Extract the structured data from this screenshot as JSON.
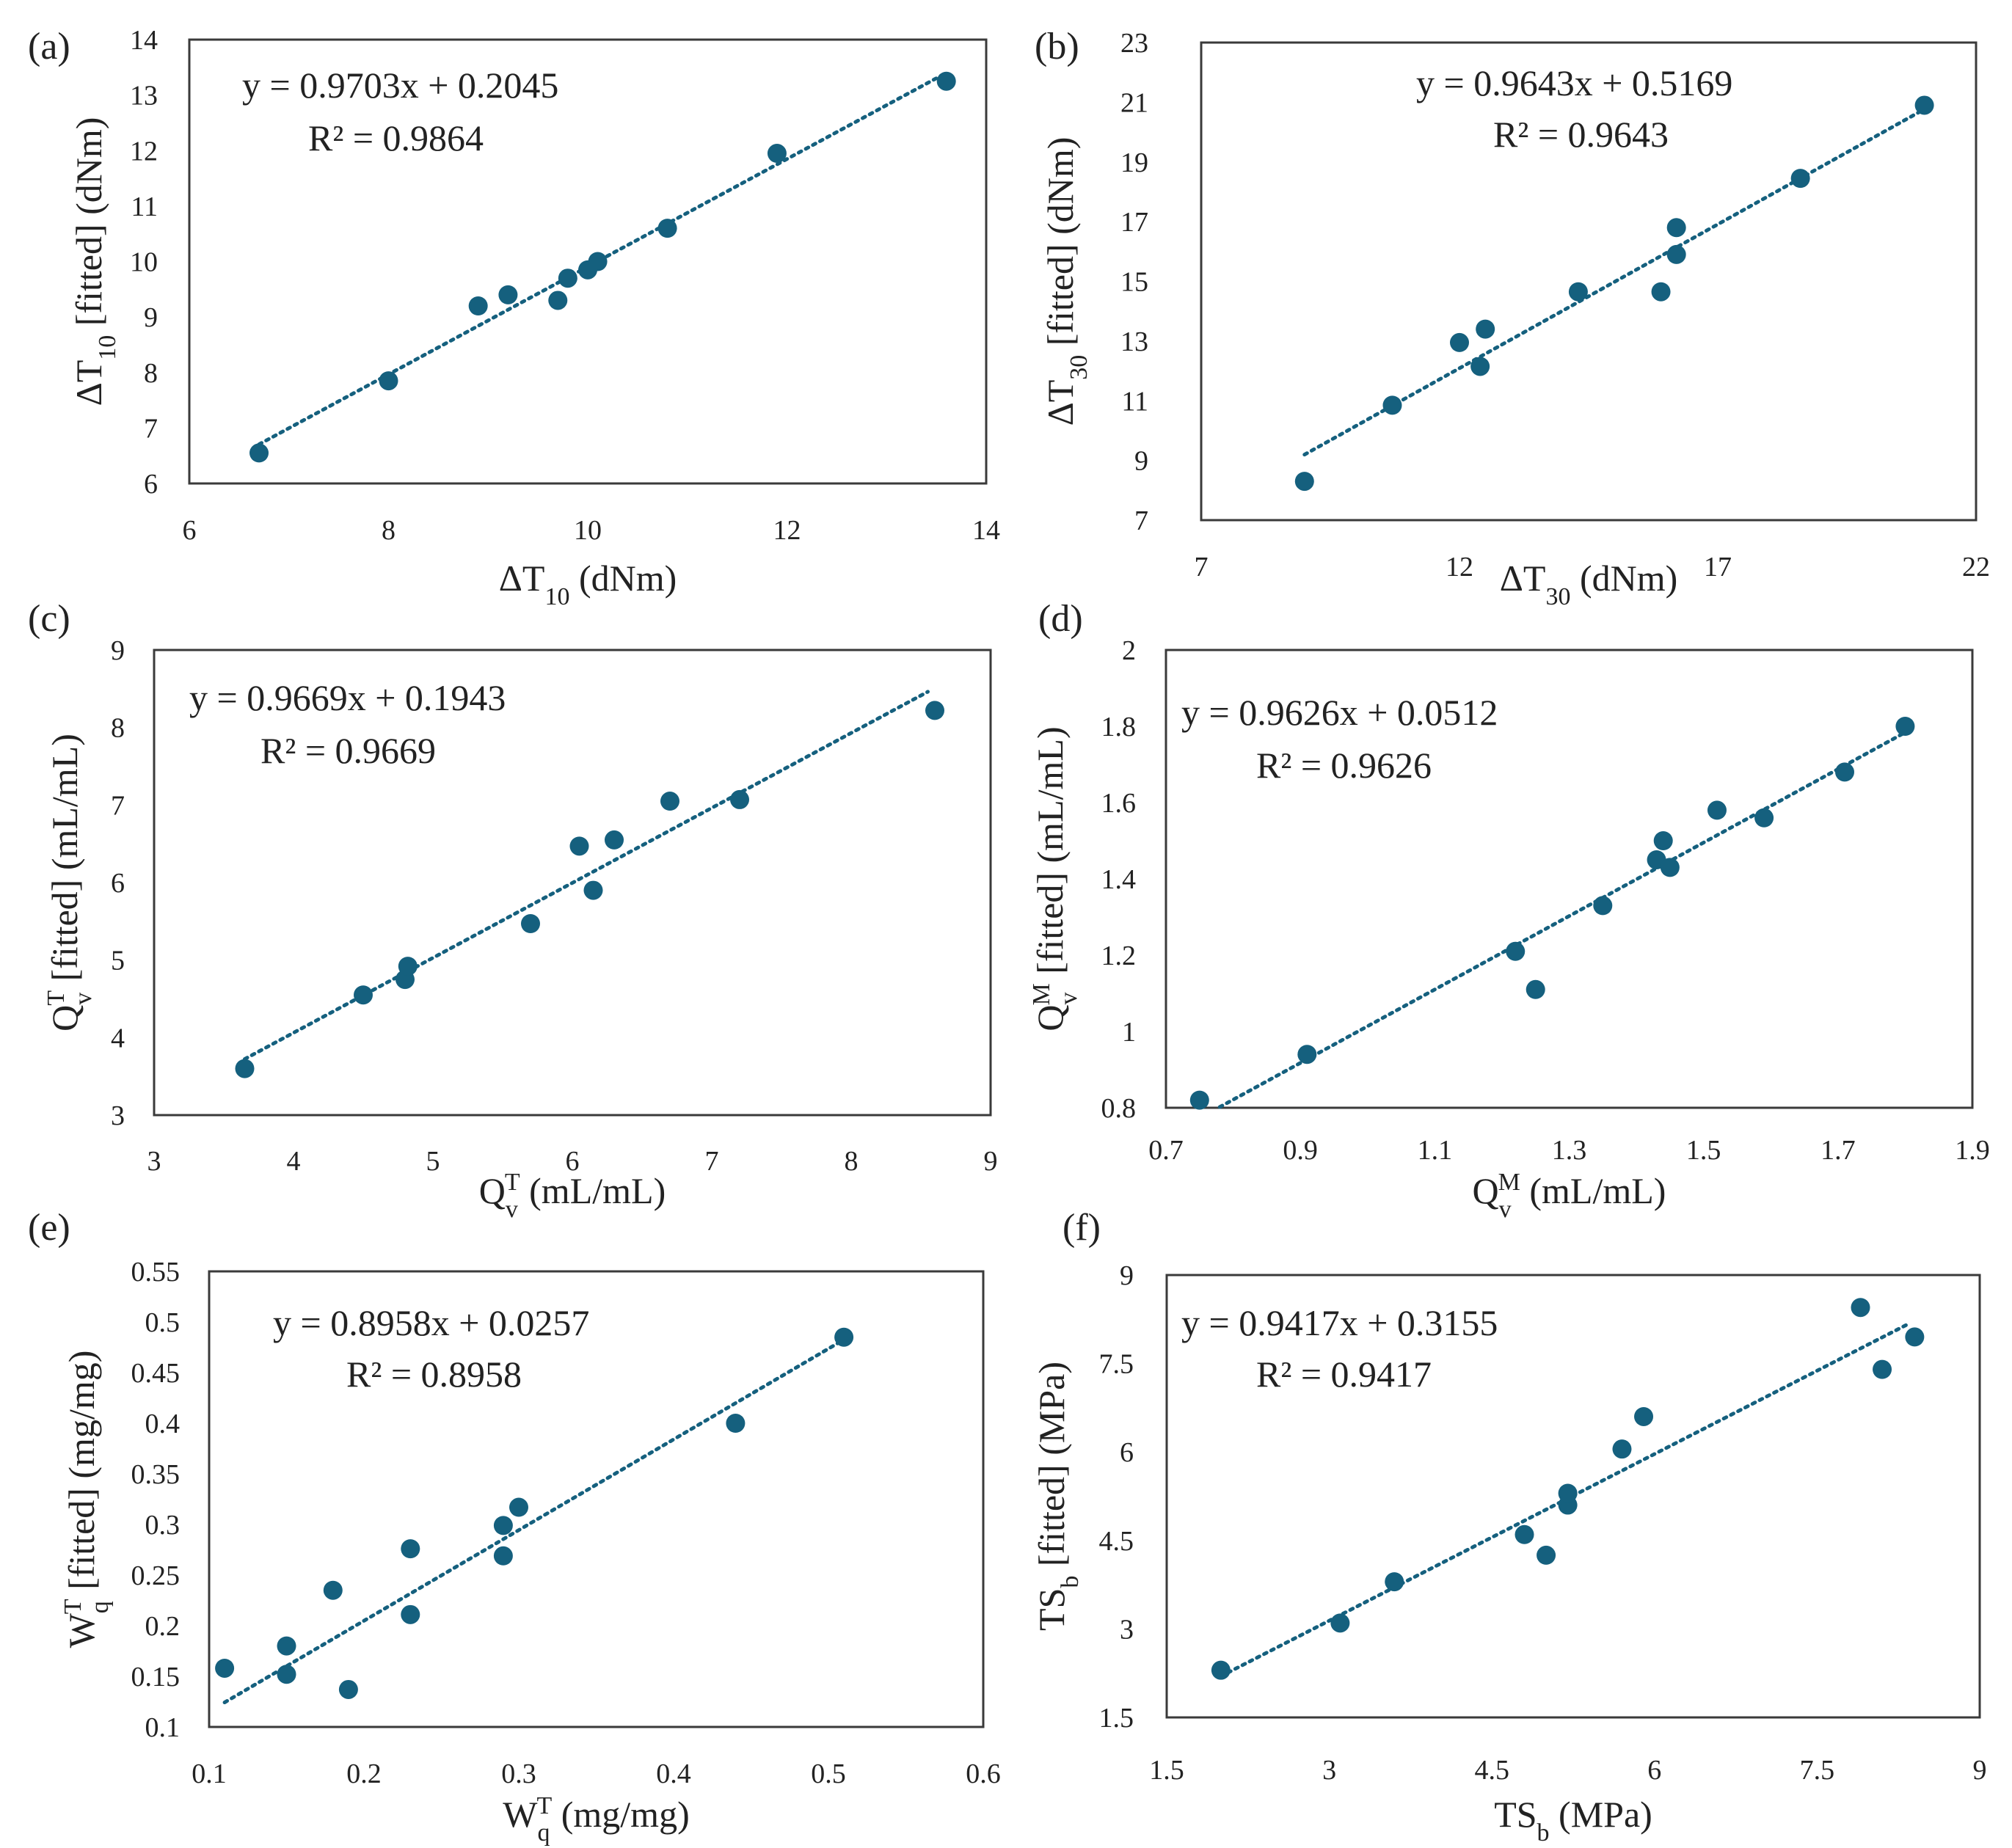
{
  "colors": {
    "marker": "#15607E",
    "trendline": "#15607E",
    "frame": "#3a3a3a",
    "text": "#222222"
  },
  "chart_data": [
    {
      "id": "a",
      "type": "scatter",
      "panel_label": "(a)",
      "xlabel": {
        "pre": "ΔT",
        "sub": "10",
        "post": " (dNm)"
      },
      "ylabel": {
        "pre": "ΔT",
        "sub": "10",
        "post": " [fitted] (dNm)"
      },
      "xlim": [
        6,
        14
      ],
      "ylim": [
        6,
        14
      ],
      "xticks": [
        6,
        8,
        10,
        12,
        14
      ],
      "yticks": [
        6,
        7,
        8,
        9,
        10,
        11,
        12,
        13,
        14
      ],
      "equation": "y = 0.9703x + 0.2045",
      "r2": "R² = 0.9864",
      "x": [
        6.7,
        8.0,
        8.9,
        9.2,
        9.7,
        9.8,
        10.0,
        10.1,
        10.8,
        11.9,
        13.6
      ],
      "y": [
        6.55,
        7.85,
        9.2,
        9.4,
        9.3,
        9.7,
        9.85,
        10.0,
        10.6,
        11.95,
        13.25
      ],
      "trend": {
        "slope": 0.9703,
        "intercept": 0.2045,
        "x_range": [
          6.7,
          13.6
        ]
      }
    },
    {
      "id": "b",
      "type": "scatter",
      "panel_label": "(b)",
      "xlabel": {
        "pre": "ΔT",
        "sub": "30",
        "post": " (dNm)"
      },
      "ylabel": {
        "pre": "ΔT",
        "sub": "30",
        "post": " [fitted] (dNm)"
      },
      "xlim": [
        7,
        22
      ],
      "ylim": [
        7,
        23
      ],
      "xticks": [
        7,
        12,
        17,
        22
      ],
      "yticks": [
        7,
        9,
        11,
        13,
        15,
        17,
        19,
        21,
        23
      ],
      "equation": "y = 0.9643x + 0.5169",
      "r2": "R² = 0.9643",
      "x": [
        9.0,
        10.7,
        12.0,
        12.4,
        12.5,
        14.3,
        15.9,
        16.2,
        16.2,
        18.6,
        21.0
      ],
      "y": [
        8.3,
        10.85,
        12.95,
        12.15,
        13.4,
        14.65,
        14.65,
        15.9,
        16.8,
        18.45,
        20.9
      ],
      "trend": {
        "slope": 0.9643,
        "intercept": 0.5169,
        "x_range": [
          9.0,
          21.0
        ]
      }
    },
    {
      "id": "c",
      "type": "scatter",
      "panel_label": "(c)",
      "xlabel": {
        "pre": "Q",
        "sub": "v",
        "sup": "T",
        "post": " (mL/mL)"
      },
      "ylabel": {
        "pre": "Q",
        "sub": "v",
        "sup": "T",
        "post": " [fitted] (mL/mL)"
      },
      "xlim": [
        3,
        9
      ],
      "ylim": [
        3,
        9
      ],
      "xticks": [
        3,
        4,
        5,
        6,
        7,
        8,
        9
      ],
      "yticks": [
        3,
        4,
        5,
        6,
        7,
        8,
        9
      ],
      "equation": "y = 0.9669x + 0.1943",
      "r2": "R² = 0.9669",
      "x": [
        3.65,
        4.5,
        4.8,
        4.82,
        5.7,
        6.05,
        6.15,
        6.3,
        6.7,
        7.2,
        8.6
      ],
      "y": [
        3.6,
        4.55,
        4.75,
        4.92,
        5.47,
        6.47,
        5.9,
        6.55,
        7.05,
        7.07,
        8.22
      ],
      "trend": {
        "slope": 0.9669,
        "intercept": 0.1943,
        "x_range": [
          3.65,
          8.55
        ]
      }
    },
    {
      "id": "d",
      "type": "scatter",
      "panel_label": "(d)",
      "xlabel": {
        "pre": "Q",
        "sub": "v",
        "sup": "M",
        "post": " (mL/mL)"
      },
      "ylabel": {
        "pre": "Q",
        "sub": "v",
        "sup": "M",
        "post": " [fitted] (mL/mL)"
      },
      "xlim": [
        0.7,
        1.9
      ],
      "ylim": [
        0.8,
        2
      ],
      "xticks": [
        0.7,
        0.9,
        1.1,
        1.3,
        1.5,
        1.7,
        1.9
      ],
      "yticks": [
        0.8,
        1,
        1.2,
        1.4,
        1.6,
        1.8,
        2
      ],
      "equation": "y = 0.9626x + 0.0512",
      "r2": "R² = 0.9626",
      "x": [
        0.75,
        0.91,
        1.22,
        1.25,
        1.35,
        1.43,
        1.44,
        1.45,
        1.52,
        1.59,
        1.71,
        1.8
      ],
      "y": [
        0.82,
        0.94,
        1.21,
        1.11,
        1.33,
        1.45,
        1.5,
        1.43,
        1.58,
        1.56,
        1.68,
        1.8
      ],
      "trend": {
        "slope": 0.9626,
        "intercept": 0.0512,
        "x_range": [
          0.78,
          1.8
        ]
      }
    },
    {
      "id": "e",
      "type": "scatter",
      "panel_label": "(e)",
      "xlabel": {
        "pre": "W",
        "sub": "q",
        "sup": "T",
        "post": " (mg/mg)"
      },
      "ylabel": {
        "pre": "W",
        "sub": "q",
        "sup": "T",
        "post": " [fitted] (mg/mg)"
      },
      "xlim": [
        0.1,
        0.6
      ],
      "ylim": [
        0.1,
        0.55
      ],
      "xticks": [
        0.1,
        0.2,
        0.3,
        0.4,
        0.5,
        0.6
      ],
      "yticks": [
        0.1,
        0.15,
        0.2,
        0.25,
        0.3,
        0.35,
        0.4,
        0.45,
        0.5,
        0.55
      ],
      "equation": "y = 0.8958x + 0.0257",
      "r2": "R² = 0.8958",
      "x": [
        0.11,
        0.15,
        0.15,
        0.18,
        0.19,
        0.23,
        0.23,
        0.29,
        0.29,
        0.3,
        0.44,
        0.51
      ],
      "y": [
        0.158,
        0.18,
        0.152,
        0.235,
        0.137,
        0.276,
        0.211,
        0.299,
        0.269,
        0.317,
        0.4,
        0.485
      ],
      "trend": {
        "slope": 0.8958,
        "intercept": 0.0257,
        "x_range": [
          0.11,
          0.51
        ]
      }
    },
    {
      "id": "f",
      "type": "scatter",
      "panel_label": "(f)",
      "xlabel": {
        "pre": "TS",
        "sub": "b",
        "post": " (MPa)"
      },
      "ylabel": {
        "pre": "TS",
        "sub": "b",
        "post": " [fitted] (MPa)"
      },
      "xlim": [
        1.5,
        9
      ],
      "ylim": [
        1.5,
        9
      ],
      "xticks": [
        1.5,
        3,
        4.5,
        6,
        7.5,
        9
      ],
      "yticks": [
        1.5,
        3,
        4.5,
        6,
        7.5,
        9
      ],
      "equation": "y = 0.9417x + 0.3155",
      "r2": "R² = 0.9417",
      "x": [
        2.0,
        3.1,
        3.6,
        4.8,
        5.0,
        5.2,
        5.2,
        5.7,
        5.9,
        7.9,
        8.1,
        8.4
      ],
      "y": [
        2.3,
        3.1,
        3.8,
        4.6,
        4.25,
        5.1,
        5.3,
        6.05,
        6.6,
        8.45,
        7.4,
        7.95
      ],
      "trend": {
        "slope": 0.9417,
        "intercept": 0.3155,
        "x_range": [
          2.0,
          8.35
        ]
      }
    }
  ]
}
